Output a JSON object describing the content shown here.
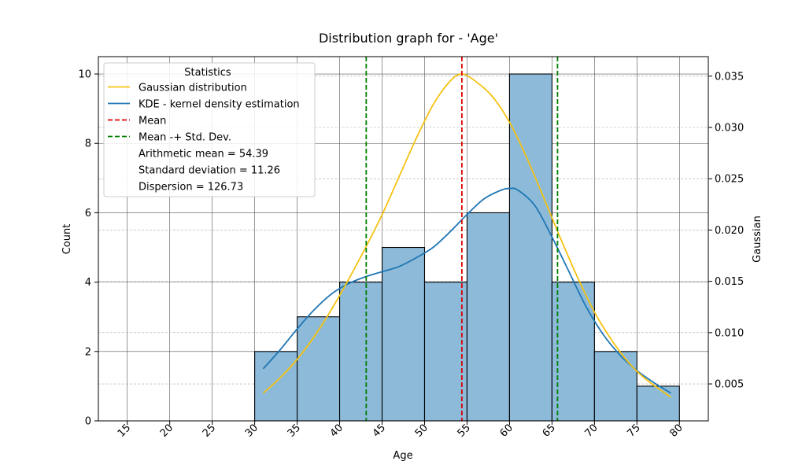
{
  "chart_data": {
    "type": "bar",
    "title": "Distribution graph for - 'Age'",
    "xlabel": "Age",
    "ylabel": "Count",
    "y2label": "Gaussian",
    "xlim": [
      11.6,
      83.4
    ],
    "ylim": [
      0,
      10.5
    ],
    "y2lim": [
      0.0014,
      0.0369
    ],
    "x_ticks": [
      15,
      20,
      25,
      30,
      35,
      40,
      45,
      50,
      55,
      60,
      65,
      70,
      75,
      80
    ],
    "y_ticks": [
      0,
      2,
      4,
      6,
      8,
      10
    ],
    "y2_ticks": [
      0.005,
      0.01,
      0.015,
      0.02,
      0.025,
      0.03,
      0.035
    ],
    "y2_tick_labels": [
      "0.005",
      "0.010",
      "0.015",
      "0.020",
      "0.025",
      "0.030",
      "0.035"
    ],
    "grid": true,
    "histogram": {
      "bin_edges": [
        15,
        20,
        25,
        30,
        35,
        40,
        45,
        50,
        55,
        60,
        65,
        70,
        75,
        80
      ],
      "counts": [
        0,
        0,
        0,
        2,
        3,
        4,
        5,
        4,
        6,
        10,
        4,
        2,
        1
      ]
    },
    "gaussian": {
      "name": "Gaussian distribution",
      "color": "#f5c211",
      "x": [
        31,
        33,
        35,
        37,
        39,
        41,
        43,
        45,
        47,
        49,
        51,
        53,
        54.39,
        56,
        58,
        60,
        62,
        64,
        66,
        68,
        70,
        72,
        74,
        76,
        79
      ],
      "y": [
        0.0041,
        0.0056,
        0.0074,
        0.0096,
        0.0122,
        0.0151,
        0.0182,
        0.0215,
        0.0252,
        0.0289,
        0.0322,
        0.0345,
        0.0352,
        0.0345,
        0.033,
        0.0305,
        0.0271,
        0.0232,
        0.0192,
        0.0154,
        0.012,
        0.0093,
        0.0071,
        0.0055,
        0.0037
      ]
    },
    "kde": {
      "name": "KDE - kernel density estimation",
      "color": "#1f77b4",
      "x": [
        31,
        33,
        35,
        37,
        39,
        41,
        43,
        45,
        47,
        49,
        51,
        53,
        55,
        57,
        59,
        60,
        61,
        63,
        65,
        67,
        69,
        71,
        73,
        75,
        77,
        79
      ],
      "y": [
        1.5,
        2.05,
        2.65,
        3.2,
        3.65,
        3.95,
        4.15,
        4.3,
        4.45,
        4.7,
        5.0,
        5.45,
        5.95,
        6.4,
        6.65,
        6.7,
        6.65,
        6.2,
        5.3,
        4.3,
        3.3,
        2.5,
        1.9,
        1.45,
        1.1,
        0.8
      ]
    },
    "mean_line": {
      "name": "Mean",
      "x": 54.39,
      "color": "#dd0000"
    },
    "std_lines": {
      "name": "Mean -+ Std. Dev.",
      "x": [
        43.13,
        65.65
      ],
      "color": "#008000"
    },
    "legend": {
      "title": "Statistics",
      "placement": "upper-left",
      "entries": [
        {
          "label": "Gaussian distribution",
          "kind": "line",
          "color": "#f5c211"
        },
        {
          "label": "KDE - kernel density estimation",
          "kind": "line",
          "color": "#1f77b4"
        },
        {
          "label": "Mean",
          "kind": "dashed",
          "color": "#dd0000"
        },
        {
          "label": "Mean -+ Std. Dev.",
          "kind": "dashed",
          "color": "#008000"
        },
        {
          "label": "Arithmetic mean = 54.39",
          "kind": "none"
        },
        {
          "label": "Standard deviation = 11.26",
          "kind": "none"
        },
        {
          "label": "Dispersion = 126.73",
          "kind": "none"
        }
      ]
    },
    "bar_color": "#8dbad9"
  }
}
